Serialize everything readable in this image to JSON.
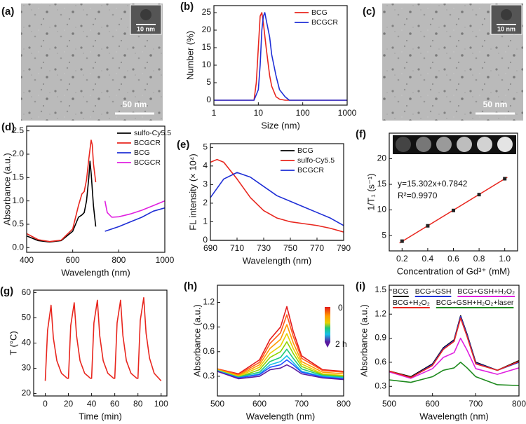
{
  "chart_data": [
    {
      "type": "image",
      "panel": "(a)",
      "scale_bar": "50 nm",
      "inset_scale_bar": "10 nm"
    },
    {
      "type": "line",
      "panel": "(b)",
      "xlabel": "Size (nm)",
      "ylabel": "Number (%)",
      "xscale": "log",
      "xlim": [
        1,
        1000
      ],
      "xticks": [
        1,
        10,
        100,
        1000
      ],
      "ylim": [
        -1.4,
        27
      ],
      "yticks": [
        0,
        5,
        10,
        15,
        20,
        25
      ],
      "legend": "upper right",
      "series": [
        {
          "name": "BCG",
          "color": "#e8261e",
          "x": [
            1,
            5,
            8,
            9,
            10,
            11,
            12,
            13,
            15,
            18,
            20,
            25,
            30,
            40,
            1000
          ],
          "values": [
            0,
            0,
            0,
            5,
            15,
            24,
            25,
            22,
            15,
            7,
            4,
            1,
            0.3,
            0,
            0
          ]
        },
        {
          "name": "BCGCR",
          "color": "#1f2fd6",
          "x": [
            1,
            8,
            10,
            11,
            12,
            13,
            14,
            15,
            18,
            20,
            25,
            30,
            40,
            50,
            1000
          ],
          "values": [
            0,
            0,
            3,
            10,
            20,
            24,
            25,
            23,
            18,
            13,
            7,
            3,
            1,
            0,
            0
          ]
        }
      ]
    },
    {
      "type": "image",
      "panel": "(c)",
      "scale_bar": "50 nm",
      "inset_scale_bar": "10 nm"
    },
    {
      "type": "line",
      "panel": "(d)",
      "xlabel": "Wavelength (nm)",
      "ylabel": "Absorbance (a.u.)",
      "xlim": [
        400,
        1000
      ],
      "xticks": [
        400,
        600,
        800,
        1000
      ],
      "ylim": [
        -0.1,
        2.6
      ],
      "yticks": [
        {
          "value": 0,
          "label": "0.0"
        },
        0.5,
        {
          "value": 1,
          "label": "1.0"
        },
        1.5,
        {
          "value": 2,
          "label": "2.0"
        },
        2.5
      ],
      "legend": "upper right",
      "series": [
        {
          "name": "sulfo-Cy5.5",
          "color": "#000000",
          "x": [
            400,
            450,
            500,
            550,
            600,
            625,
            640,
            650,
            660,
            670,
            675,
            680,
            690,
            700
          ],
          "values": [
            0.25,
            0.15,
            0.12,
            0.15,
            0.35,
            0.65,
            0.7,
            0.75,
            1.0,
            1.5,
            1.85,
            1.6,
            0.9,
            0.45
          ]
        },
        {
          "name": "BCGCR",
          "color": "#e8261e",
          "x": [
            400,
            450,
            500,
            550,
            600,
            625,
            640,
            650,
            660,
            670,
            680,
            685,
            690,
            700
          ],
          "values": [
            0.3,
            0.17,
            0.13,
            0.16,
            0.4,
            0.9,
            1.15,
            1.2,
            1.45,
            1.9,
            2.3,
            2.2,
            1.8,
            1.4
          ]
        },
        {
          "name": "BCG",
          "color": "#1f2fd6",
          "x": [
            740,
            800,
            850,
            900,
            950,
            1000
          ],
          "values": [
            0.35,
            0.45,
            0.55,
            0.65,
            0.78,
            0.85
          ]
        },
        {
          "name": "BCGCR",
          "color": "#e020e0",
          "x": [
            740,
            750,
            770,
            800,
            850,
            900,
            950,
            1000
          ],
          "values": [
            1.0,
            0.75,
            0.65,
            0.66,
            0.72,
            0.8,
            0.9,
            1.0
          ]
        }
      ]
    },
    {
      "type": "line",
      "panel": "(e)",
      "xlabel": "Wavelength (nm)",
      "ylabel": "FL intensity (× 10⁴)",
      "xlim": [
        690,
        790
      ],
      "xticks": [
        690,
        710,
        730,
        750,
        770,
        790
      ],
      "ylim": [
        0,
        5.2
      ],
      "yticks": [
        0,
        1,
        2,
        3,
        4,
        5
      ],
      "legend": "upper right",
      "x": [
        690,
        695,
        700,
        710,
        720,
        730,
        740,
        750,
        760,
        770,
        780,
        790
      ],
      "series": [
        {
          "name": "BCG",
          "color": "#000000",
          "values": [
            0,
            0,
            0,
            0,
            0,
            0,
            0,
            0,
            0,
            0,
            0,
            0
          ]
        },
        {
          "name": "sulfo-Cy5.5",
          "color": "#e8261e",
          "values": [
            4.2,
            4.35,
            4.2,
            3.3,
            2.3,
            1.6,
            1.2,
            1.0,
            0.9,
            0.8,
            0.65,
            0.45
          ]
        },
        {
          "name": "BCGCR",
          "color": "#1f2fd6",
          "values": [
            2.3,
            2.8,
            3.3,
            3.65,
            3.4,
            2.9,
            2.4,
            2.1,
            1.8,
            1.5,
            1.2,
            0.8
          ]
        }
      ]
    },
    {
      "type": "scatter",
      "panel": "(f)",
      "xlabel": "Concentration of Gd³⁺ (mM)",
      "ylabel": "1/T₁ (s⁻¹)",
      "xlim": [
        0.1,
        1.1
      ],
      "xticks": [
        0.2,
        0.4,
        0.6,
        0.8,
        {
          "value": 1,
          "label": "1.0"
        }
      ],
      "ylim": [
        2,
        25
      ],
      "yticks": [
        5,
        10,
        15,
        20
      ],
      "x": [
        0.2,
        0.4,
        0.6,
        0.8,
        1
      ],
      "series": [
        {
          "color": "#222222",
          "values": [
            3.9,
            6.9,
            9.9,
            13.0,
            16.1
          ]
        }
      ],
      "fit_line": {
        "color": "#e8261e",
        "x": [
          0.18,
          1.02
        ],
        "values": [
          3.54,
          16.39
        ]
      },
      "annotations": [
        "y=15.302x+0.7842",
        "R²=0.9970"
      ]
    },
    {
      "type": "line",
      "panel": "(g)",
      "xlabel": "Time (min)",
      "ylabel": "T (°C)",
      "xlim": [
        -10,
        105
      ],
      "xticks": [
        0,
        20,
        40,
        60,
        80,
        100
      ],
      "ylim": [
        19,
        61
      ],
      "yticks": [
        20,
        30,
        40,
        50,
        60
      ],
      "x": [
        0,
        2,
        5,
        7,
        10,
        14,
        19,
        20,
        22,
        25,
        27,
        30,
        34,
        39,
        40,
        42,
        45,
        47,
        50,
        54,
        59,
        60,
        62,
        65,
        67,
        70,
        74,
        79,
        80,
        82,
        85,
        87,
        90,
        94,
        100
      ],
      "series": [
        {
          "color": "#e8261e",
          "values": [
            25,
            45,
            55,
            42,
            33,
            28,
            26,
            26,
            47,
            56,
            43,
            33,
            28,
            26,
            26,
            48,
            57,
            43,
            33,
            28,
            26,
            26,
            48,
            57,
            43,
            33,
            28,
            26,
            26,
            49,
            58,
            44,
            34,
            28,
            25
          ]
        }
      ]
    },
    {
      "type": "line",
      "panel": "(h)",
      "xlabel": "Wavelength (nm)",
      "ylabel": "Absorbance (a.u.)",
      "xlim": [
        500,
        800
      ],
      "xticks": [
        500,
        600,
        700,
        800
      ],
      "ylim": [
        0.06,
        1.41
      ],
      "yticks": [
        0.3,
        0.6,
        0.9,
        1.2
      ],
      "colorbar_labels": [
        "0",
        "2 h"
      ],
      "x": [
        500,
        550,
        600,
        625,
        650,
        665,
        680,
        700,
        750,
        800
      ],
      "series": [
        {
          "color": "#e41a1c",
          "values": [
            0.39,
            0.33,
            0.5,
            0.75,
            0.9,
            1.15,
            0.85,
            0.55,
            0.38,
            0.36
          ]
        },
        {
          "color": "#ff5a1a",
          "values": [
            0.39,
            0.32,
            0.47,
            0.7,
            0.83,
            1.05,
            0.79,
            0.52,
            0.37,
            0.35
          ]
        },
        {
          "color": "#ff9a00",
          "values": [
            0.38,
            0.31,
            0.44,
            0.64,
            0.75,
            0.93,
            0.71,
            0.48,
            0.35,
            0.33
          ]
        },
        {
          "color": "#e8d000",
          "values": [
            0.38,
            0.3,
            0.41,
            0.58,
            0.67,
            0.82,
            0.64,
            0.45,
            0.33,
            0.31
          ]
        },
        {
          "color": "#8fd400",
          "values": [
            0.37,
            0.29,
            0.38,
            0.53,
            0.6,
            0.72,
            0.58,
            0.42,
            0.32,
            0.3
          ]
        },
        {
          "color": "#20c878",
          "values": [
            0.37,
            0.29,
            0.35,
            0.48,
            0.53,
            0.63,
            0.52,
            0.39,
            0.31,
            0.29
          ]
        },
        {
          "color": "#18c0e8",
          "values": [
            0.37,
            0.28,
            0.33,
            0.44,
            0.48,
            0.55,
            0.47,
            0.36,
            0.3,
            0.28
          ]
        },
        {
          "color": "#2050ff",
          "values": [
            0.36,
            0.28,
            0.32,
            0.41,
            0.44,
            0.5,
            0.44,
            0.35,
            0.29,
            0.27
          ]
        },
        {
          "color": "#5a1aa0",
          "values": [
            0.36,
            0.27,
            0.3,
            0.38,
            0.4,
            0.44,
            0.4,
            0.33,
            0.28,
            0.26
          ]
        }
      ]
    },
    {
      "type": "line",
      "panel": "(i)",
      "xlabel": "Wavelength (nm)",
      "ylabel": "Absorbance (a.u.)",
      "xlim": [
        500,
        800
      ],
      "xticks": [
        500,
        600,
        700,
        800
      ],
      "ylim": [
        0.18,
        1.56
      ],
      "yticks": [
        0.3,
        0.6,
        0.9,
        1.2,
        1.5
      ],
      "legend": "top",
      "legend_columns": 3,
      "x": [
        500,
        550,
        600,
        625,
        650,
        665,
        680,
        700,
        750,
        800
      ],
      "series": [
        {
          "name": "BCG",
          "color": "#000000",
          "values": [
            0.49,
            0.42,
            0.58,
            0.78,
            0.88,
            1.18,
            0.95,
            0.6,
            0.5,
            0.62
          ]
        },
        {
          "name": "BCG+GSH",
          "color": "#1f2fd6",
          "values": [
            0.48,
            0.41,
            0.57,
            0.77,
            0.87,
            1.17,
            0.94,
            0.59,
            0.5,
            0.6
          ]
        },
        {
          "name": "BCG+GSH+H₂O₂",
          "color": "#e020e0",
          "values": [
            0.48,
            0.4,
            0.52,
            0.66,
            0.72,
            0.9,
            0.75,
            0.52,
            0.45,
            0.53
          ]
        },
        {
          "name": "BCG+H₂O₂",
          "color": "#e8261e",
          "values": [
            0.49,
            0.41,
            0.56,
            0.76,
            0.86,
            1.15,
            0.92,
            0.58,
            0.5,
            0.61
          ]
        },
        {
          "name": "BCG+GSH+H₂O₂+laser",
          "color": "#1e8a1e",
          "values": [
            0.38,
            0.35,
            0.42,
            0.5,
            0.53,
            0.6,
            0.53,
            0.42,
            0.32,
            0.31
          ]
        }
      ]
    }
  ]
}
